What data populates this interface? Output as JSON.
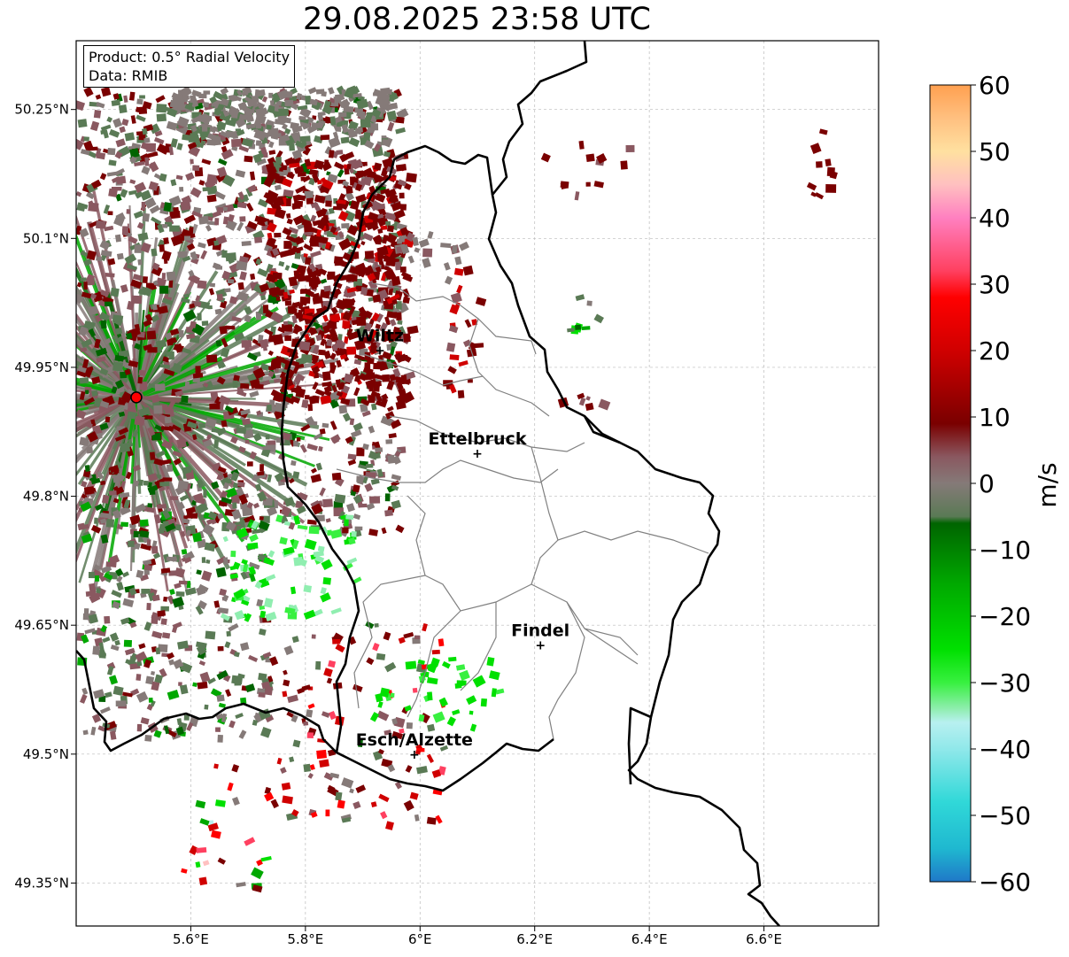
{
  "title": "29.08.2025 23:58 UTC",
  "info": {
    "product": "Product: 0.5° Radial Velocity",
    "data": "Data: RMIB"
  },
  "axes": {
    "lon_ticks": [
      "5.6°E",
      "5.8°E",
      "6°E",
      "6.2°E",
      "6.4°E",
      "6.6°E"
    ],
    "lat_ticks": [
      "50.25°N",
      "50.1°N",
      "49.95°N",
      "49.8°N",
      "49.65°N",
      "49.5°N",
      "49.35°N"
    ]
  },
  "cities": [
    {
      "name": "Wiltz",
      "lon": 5.93,
      "lat": 49.97
    },
    {
      "name": "Ettelbruck",
      "lon": 6.1,
      "lat": 49.85
    },
    {
      "name": "Findel",
      "lon": 6.21,
      "lat": 49.627
    },
    {
      "name": "Esch/Alzette",
      "lon": 5.99,
      "lat": 49.5
    }
  ],
  "radar_site": {
    "lon": 5.505,
    "lat": 49.915,
    "color": "#ff0000"
  },
  "colorbar": {
    "label": "m/s",
    "min": -60,
    "max": 60,
    "ticks": [
      "60",
      "50",
      "40",
      "30",
      "20",
      "10",
      "0",
      "−10",
      "−20",
      "−30",
      "−40",
      "−50",
      "−60"
    ],
    "stops": [
      {
        "v": -60,
        "c": "#1f78c8"
      },
      {
        "v": -55,
        "c": "#1fb8d0"
      },
      {
        "v": -48,
        "c": "#30d8d8"
      },
      {
        "v": -40,
        "c": "#90e8ea"
      },
      {
        "v": -36,
        "c": "#b8f0f0"
      },
      {
        "v": -34,
        "c": "#90eeb0"
      },
      {
        "v": -30,
        "c": "#38f040"
      },
      {
        "v": -25,
        "c": "#00e000"
      },
      {
        "v": -15,
        "c": "#00a800"
      },
      {
        "v": -6,
        "c": "#006400"
      },
      {
        "v": -5,
        "c": "#5a7a55"
      },
      {
        "v": 0,
        "c": "#857a78"
      },
      {
        "v": 4,
        "c": "#8a5860"
      },
      {
        "v": 9,
        "c": "#7a0000"
      },
      {
        "v": 20,
        "c": "#d00000"
      },
      {
        "v": 28,
        "c": "#ff0000"
      },
      {
        "v": 32,
        "c": "#ff4060"
      },
      {
        "v": 40,
        "c": "#ff80c0"
      },
      {
        "v": 45,
        "c": "#ffc0c0"
      },
      {
        "v": 50,
        "c": "#ffe0a0"
      },
      {
        "v": 55,
        "c": "#ffc080"
      },
      {
        "v": 60,
        "c": "#ffa050"
      }
    ]
  },
  "colors": {
    "border": "#000000",
    "cantons": "#808080",
    "grid": "#bbbbbb"
  }
}
